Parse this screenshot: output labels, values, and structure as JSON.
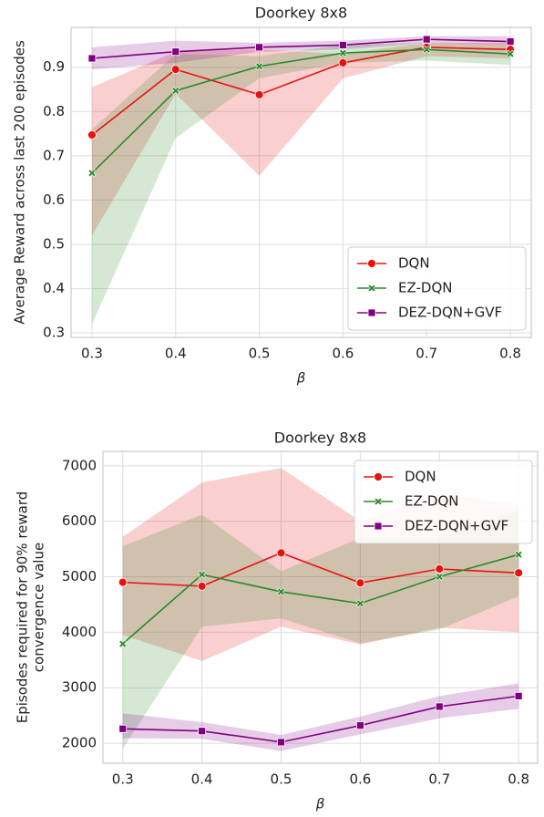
{
  "chart_data": [
    {
      "type": "line",
      "title": "Doorkey 8x8",
      "xlabel": "β",
      "ylabel": [
        "Average Reward across last 200 episodes"
      ],
      "x": [
        0.3,
        0.4,
        0.5,
        0.6,
        0.7,
        0.8
      ],
      "xlim": [
        0.275,
        0.825
      ],
      "xticks": [
        0.3,
        0.4,
        0.5,
        0.6,
        0.7,
        0.8
      ],
      "ylim": [
        0.29,
        0.99
      ],
      "yticks": [
        0.3,
        0.4,
        0.5,
        0.6,
        0.7,
        0.8,
        0.9
      ],
      "grid": true,
      "legend": "lower right",
      "series": [
        {
          "name": "DQN",
          "color": "#e8110f",
          "marker": "circle",
          "values": [
            0.747,
            0.895,
            0.838,
            0.91,
            0.945,
            0.94
          ],
          "lower": [
            0.52,
            0.84,
            0.655,
            0.875,
            0.925,
            0.92
          ],
          "upper": [
            0.855,
            0.935,
            0.94,
            0.93,
            0.955,
            0.955
          ]
        },
        {
          "name": "EZ-DQN",
          "color": "#2a8a2a",
          "marker": "x",
          "values": [
            0.661,
            0.847,
            0.902,
            0.932,
            0.94,
            0.93
          ],
          "lower": [
            0.32,
            0.74,
            0.875,
            0.91,
            0.915,
            0.905
          ],
          "upper": [
            0.76,
            0.93,
            0.925,
            0.95,
            0.955,
            0.95
          ]
        },
        {
          "name": "DEZ-DQN+GVF",
          "color": "#800080",
          "marker": "square",
          "values": [
            0.92,
            0.935,
            0.945,
            0.95,
            0.963,
            0.958
          ],
          "lower": [
            0.895,
            0.91,
            0.935,
            0.94,
            0.955,
            0.95
          ],
          "upper": [
            0.945,
            0.96,
            0.955,
            0.96,
            0.97,
            0.97
          ]
        }
      ]
    },
    {
      "type": "line",
      "title": "Doorkey 8x8",
      "xlabel": "β",
      "ylabel": [
        "Episodes required for 90% reward",
        "convergence value"
      ],
      "x": [
        0.3,
        0.4,
        0.5,
        0.6,
        0.7,
        0.8
      ],
      "xlim": [
        0.275,
        0.824
      ],
      "xticks": [
        0.3,
        0.4,
        0.5,
        0.6,
        0.7,
        0.8
      ],
      "ylim": [
        1640,
        7260
      ],
      "yticks": [
        2000,
        3000,
        4000,
        5000,
        6000,
        7000
      ],
      "grid": true,
      "legend": "upper right",
      "series": [
        {
          "name": "DQN",
          "color": "#e8110f",
          "marker": "circle",
          "values": [
            4900,
            4830,
            5430,
            4890,
            5140,
            5070
          ],
          "lower": [
            3950,
            3480,
            4100,
            3780,
            4080,
            4000
          ],
          "upper": [
            5720,
            6700,
            6960,
            6000,
            6500,
            6300
          ]
        },
        {
          "name": "EZ-DQN",
          "color": "#2a8a2a",
          "marker": "x",
          "values": [
            3790,
            5040,
            4730,
            4520,
            5000,
            5400
          ],
          "lower": [
            1900,
            4100,
            4250,
            3800,
            4050,
            4650
          ],
          "upper": [
            5550,
            6120,
            5100,
            5700,
            5700,
            6200
          ]
        },
        {
          "name": "DEZ-DQN+GVF",
          "color": "#800080",
          "marker": "square",
          "values": [
            2260,
            2220,
            2020,
            2320,
            2660,
            2850
          ],
          "lower": [
            2090,
            2080,
            1860,
            2160,
            2450,
            2620
          ],
          "upper": [
            2540,
            2380,
            2150,
            2480,
            2850,
            3080
          ]
        }
      ]
    }
  ]
}
